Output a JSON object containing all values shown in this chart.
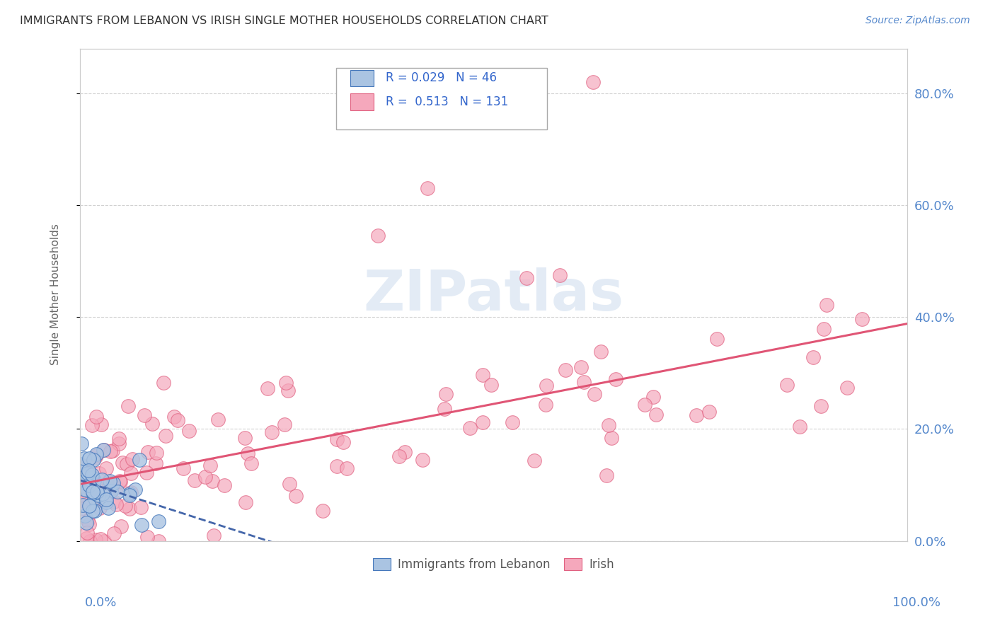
{
  "title": "IMMIGRANTS FROM LEBANON VS IRISH SINGLE MOTHER HOUSEHOLDS CORRELATION CHART",
  "source": "Source: ZipAtlas.com",
  "ylabel": "Single Mother Households",
  "watermark": "ZIPatlas",
  "legend_labels": [
    "Immigrants from Lebanon",
    "Irish"
  ],
  "blue_R": 0.029,
  "blue_N": 46,
  "pink_R": 0.513,
  "pink_N": 131,
  "blue_color": "#aac4e2",
  "pink_color": "#f5a8bc",
  "blue_edge_color": "#4477bb",
  "pink_edge_color": "#e06080",
  "blue_line_color": "#4466aa",
  "pink_line_color": "#e05575",
  "title_color": "#333333",
  "axis_label_color": "#5588cc",
  "legend_R_color": "#3366cc",
  "background_color": "#ffffff",
  "grid_color": "#cccccc",
  "ylim": [
    0.0,
    0.88
  ],
  "xlim": [
    0.0,
    1.0
  ],
  "y_ticks": [
    0.0,
    0.2,
    0.4,
    0.6,
    0.8
  ],
  "y_tick_labels": [
    "0.0%",
    "20.0%",
    "40.0%",
    "60.0%",
    "80.0%"
  ]
}
